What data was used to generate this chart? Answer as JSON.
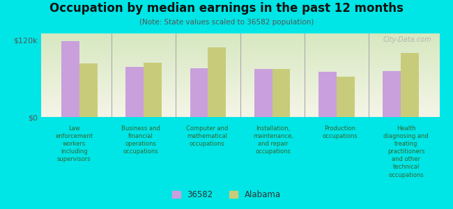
{
  "title": "Occupation by median earnings in the past 12 months",
  "subtitle": "(Note: State values scaled to 36582 population)",
  "background_color": "#00e5e5",
  "plot_bg_color_top": "#d6e8c0",
  "plot_bg_color_bottom": "#f5f5e8",
  "categories": [
    "Law\nenforcement\nworkers\nincluding\nsupervisors",
    "Business and\nfinancial\noperations\noccupations",
    "Computer and\nmathematical\noccupations",
    "Installation,\nmaintenance,\nand repair\noccupations",
    "Production\noccupations",
    "Health\ndiagnosing and\ntreating\npractitioners\nand other\ntechnical\noccupations"
  ],
  "values_36582": [
    118000,
    78000,
    76000,
    75000,
    70000,
    72000
  ],
  "values_alabama": [
    83000,
    85000,
    108000,
    75000,
    63000,
    100000
  ],
  "color_36582": "#c9a0dc",
  "color_alabama": "#c8cc7a",
  "ylim": [
    0,
    130000
  ],
  "yticks": [
    0,
    120000
  ],
  "ytick_labels": [
    "$0",
    "$120k"
  ],
  "legend_labels": [
    "36582",
    "Alabama"
  ],
  "bar_width": 0.28,
  "watermark": "City-Data.com"
}
